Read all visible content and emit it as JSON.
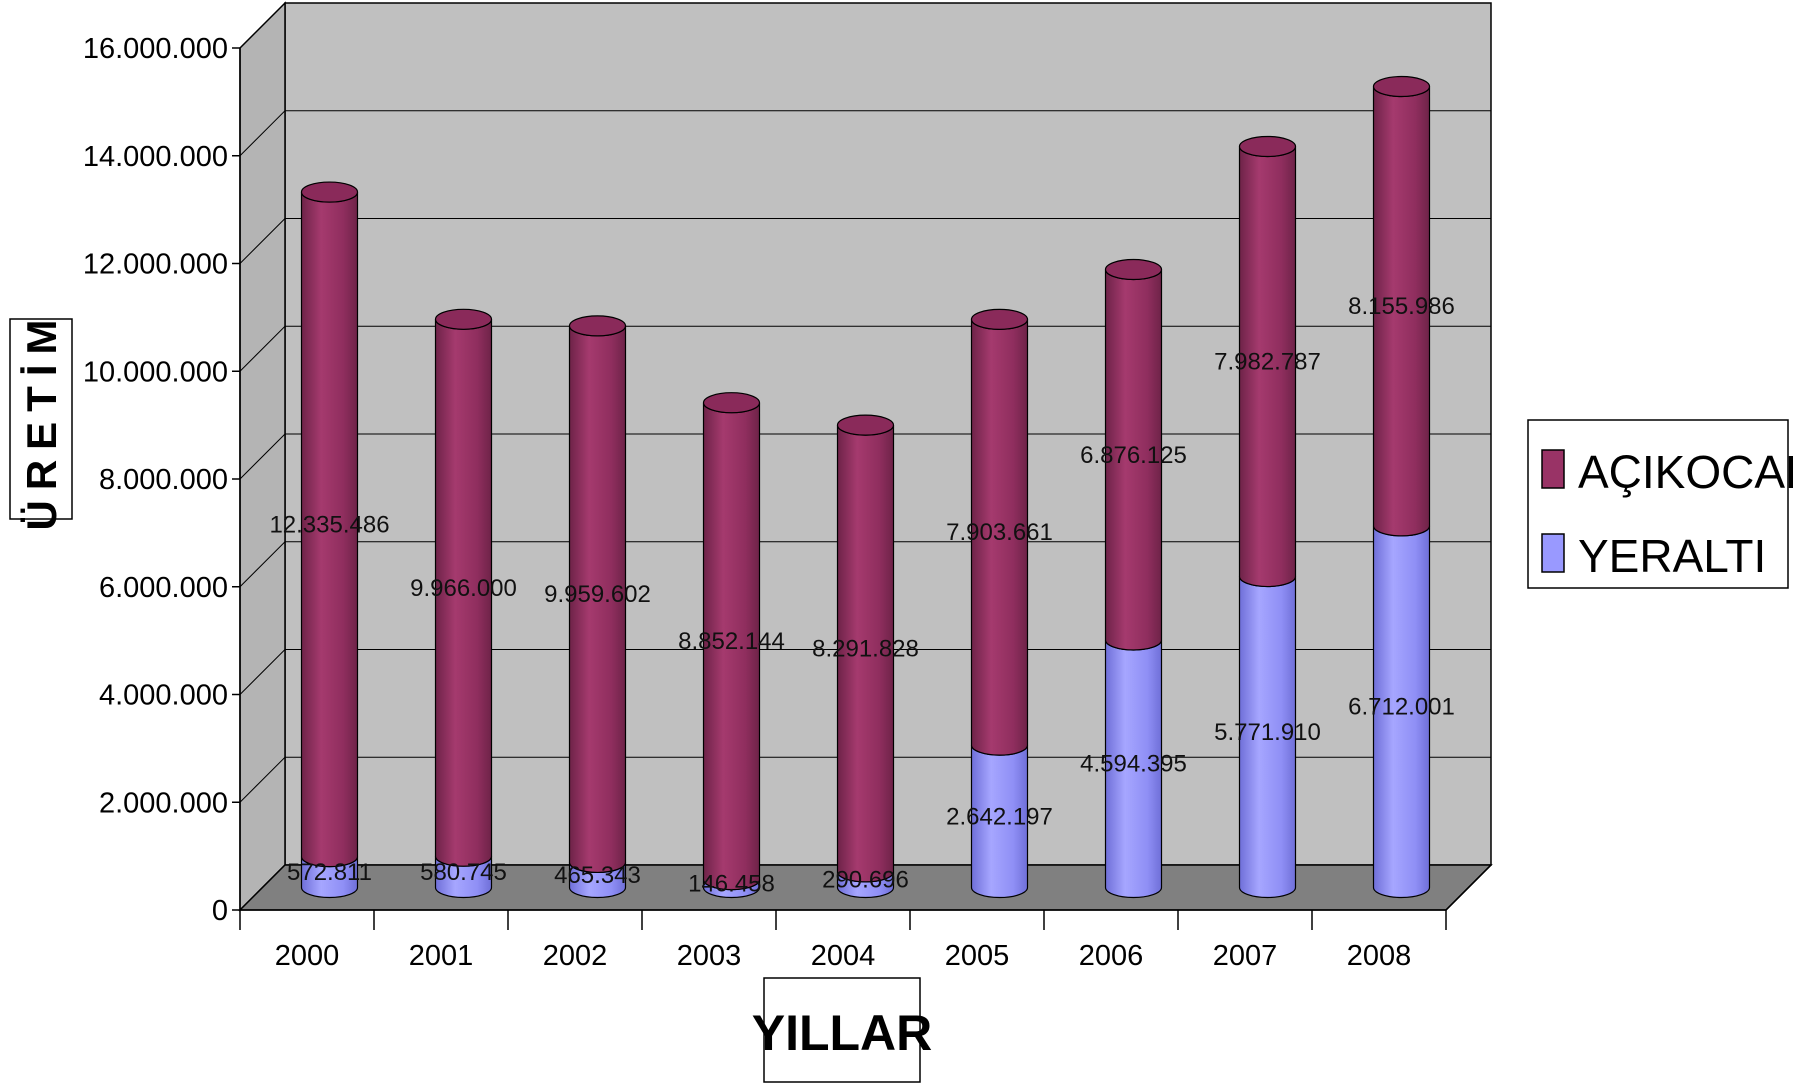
{
  "chart_data": {
    "type": "bar",
    "stacked": true,
    "view": "3d-cylinder",
    "categories": [
      "2000",
      "2001",
      "2002",
      "2003",
      "2004",
      "2005",
      "2006",
      "2007",
      "2008"
    ],
    "series": [
      {
        "name": "YERALTI",
        "color": "#9999ff",
        "values": [
          572811,
          580745,
          465343,
          146458,
          290696,
          2642197,
          4594395,
          5771910,
          6712001
        ],
        "labels": [
          "572.811",
          "580.745",
          "465.343",
          "146.458",
          "290.696",
          "2.642.197",
          "4.594.395",
          "5.771.910",
          "6.712.001"
        ]
      },
      {
        "name": "AÇIKOCAK",
        "color": "#993366",
        "values": [
          12335486,
          9966000,
          9959602,
          8852144,
          8291828,
          7903661,
          6876125,
          7982787,
          8155986
        ],
        "labels": [
          "12.335.486",
          "9.966.000",
          "9.959.602",
          "8.852.144",
          "8.291.828",
          "7.903.661",
          "6.876.125",
          "7.982.787",
          "8.155.986"
        ]
      }
    ],
    "xlabel": "YILLAR",
    "ylabel": "ÜRETİM",
    "ylim": [
      0,
      16000000
    ],
    "yticks": [
      0,
      2000000,
      4000000,
      6000000,
      8000000,
      10000000,
      12000000,
      14000000,
      16000000
    ],
    "ytick_labels": [
      "0",
      "2.000.000",
      "4.000.000",
      "6.000.000",
      "8.000.000",
      "10.000.000",
      "12.000.000",
      "14.000.000",
      "16.000.000"
    ],
    "grid": true,
    "legend_position": "right",
    "legend_order": [
      "AÇIKOCAK",
      "YERALTI"
    ],
    "wall_color": "#c0c0c0",
    "floor_color": "#808080"
  }
}
